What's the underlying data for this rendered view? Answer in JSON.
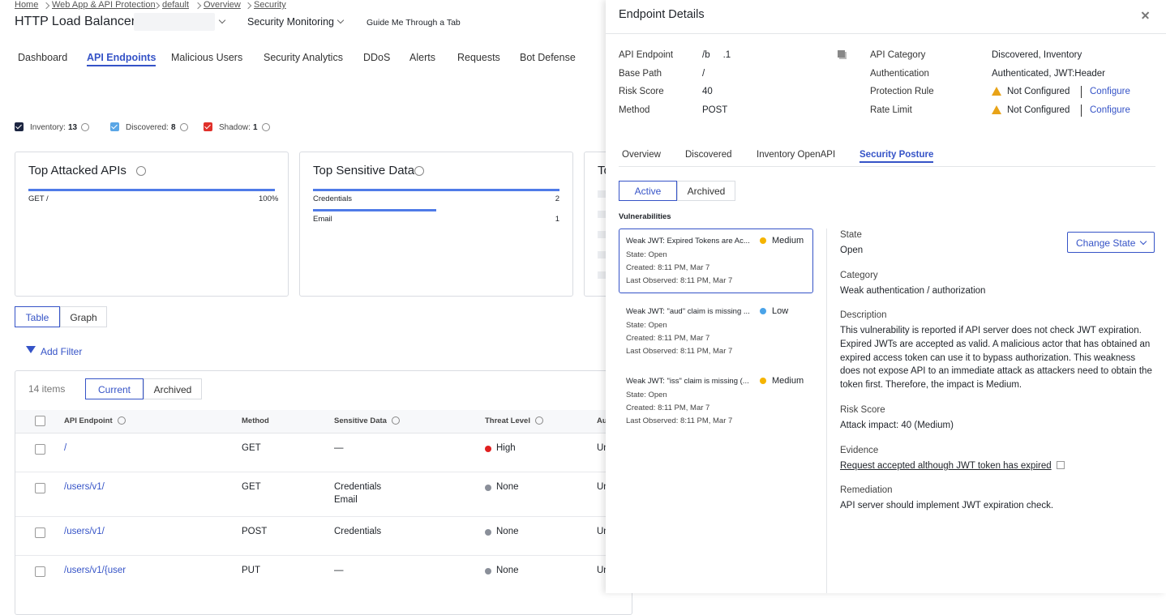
{
  "breadcrumb": [
    "Home",
    "Web App & API Protection",
    "default",
    "Overview",
    "Security"
  ],
  "header": {
    "title": "HTTP Load Balancer:",
    "dropdown": "Security Monitoring",
    "guide": "Guide Me Through a Tab"
  },
  "tabs": [
    "Dashboard",
    "API Endpoints",
    "Malicious Users",
    "Security Analytics",
    "DDoS",
    "Alerts",
    "Requests",
    "Bot Defense"
  ],
  "active_tab": 1,
  "filters": [
    {
      "label": "Inventory:",
      "count": "13",
      "color": "#1c2541"
    },
    {
      "label": "Discovered:",
      "count": "8",
      "color": "#5aa6e6"
    },
    {
      "label": "Shadow:",
      "count": "1",
      "color": "#e0302a"
    }
  ],
  "cards": [
    {
      "title": "Top Attacked APIs",
      "rows": [
        {
          "label": "GET /",
          "value": "100%"
        }
      ]
    },
    {
      "title": "Top Sensitive Data",
      "rows": [
        {
          "label": "Credentials",
          "value": "2"
        },
        {
          "label": "Email",
          "value": "1"
        }
      ]
    },
    {
      "title": "To",
      "rows": []
    }
  ],
  "view_toggle": [
    "Table",
    "Graph"
  ],
  "add_filter": "Add Filter",
  "table": {
    "count": "14 items",
    "toggle": [
      "Current",
      "Archived"
    ],
    "columns": [
      "API Endpoint",
      "Method",
      "Sensitive Data",
      "Threat Level",
      "Au"
    ],
    "rows": [
      {
        "endpoint": "/",
        "method": "GET",
        "sensitive": [
          "—"
        ],
        "threat": "High",
        "threat_color": "#e02020",
        "auth": "Un"
      },
      {
        "endpoint": "/users/v1/",
        "method": "GET",
        "sensitive": [
          "Credentials",
          "Email"
        ],
        "threat": "None",
        "threat_color": "#8a8f99",
        "auth": "Un"
      },
      {
        "endpoint": "/users/v1/",
        "method": "POST",
        "sensitive": [
          "Credentials"
        ],
        "threat": "None",
        "threat_color": "#8a8f99",
        "auth": "Un"
      },
      {
        "endpoint": "/users/v1/{user",
        "method": "PUT",
        "sensitive": [
          "—"
        ],
        "threat": "None",
        "threat_color": "#8a8f99",
        "auth": "Un"
      }
    ]
  },
  "drawer": {
    "title": "Endpoint Details",
    "details_left": [
      {
        "label": "API Endpoint",
        "value": "/b     .1"
      },
      {
        "label": "Base Path",
        "value": "/"
      },
      {
        "label": "Risk Score",
        "value": "40"
      },
      {
        "label": "Method",
        "value": "POST"
      }
    ],
    "details_right": [
      {
        "label": "API Category",
        "value": "Discovered, Inventory"
      },
      {
        "label": "Authentication",
        "value": "Authenticated, JWT:Header"
      },
      {
        "label": "Protection Rule",
        "value": "Not Configured",
        "action": "Configure"
      },
      {
        "label": "Rate Limit",
        "value": "Not Configured",
        "action": "Configure"
      }
    ],
    "tabs": [
      "Overview",
      "Discovered",
      "Inventory OpenAPI",
      "Security Posture"
    ],
    "active_tab": 3,
    "state_toggle": [
      "Active",
      "Archived"
    ],
    "vulnerabilities_heading": "Vulnerabilities",
    "vulnerabilities": [
      {
        "title": "Weak JWT: Expired Tokens are Ac...",
        "severity": "Medium",
        "severity_color": "#f5b400",
        "state": "State: Open",
        "created": "Created: 8:11 PM, Mar 7",
        "last_observed": "Last Observed: 8:11 PM, Mar 7"
      },
      {
        "title": "Weak JWT: \"aud\" claim is missing ...",
        "severity": "Low",
        "severity_color": "#4aa3e8",
        "state": "State: Open",
        "created": "Created: 8:11 PM, Mar 7",
        "last_observed": "Last Observed: 8:11 PM, Mar 7"
      },
      {
        "title": "Weak JWT: \"iss\" claim is missing (...",
        "severity": "Medium",
        "severity_color": "#f5b400",
        "state": "State: Open",
        "created": "Created: 8:11 PM, Mar 7",
        "last_observed": "Last Observed: 8:11 PM, Mar 7"
      }
    ],
    "detail": {
      "change_state": "Change State",
      "sections": [
        {
          "label": "State",
          "value": "Open"
        },
        {
          "label": "Category",
          "value": "Weak authentication / authorization"
        },
        {
          "label": "Description",
          "value": "This vulnerability is reported if API server does not check JWT expiration. Expired JWTs are accepted as valid. A malicious actor that has obtained an expired access token can use it to bypass authorization. This weakness does not expose API to an immediate attack as attackers need to obtain the token first. Therefore, the impact is Medium."
        },
        {
          "label": "Risk Score",
          "value": "Attack impact: 40 (Medium)"
        },
        {
          "label": "Evidence",
          "value": "Request accepted although JWT token has expired"
        },
        {
          "label": "Remediation",
          "value": "API server should implement JWT expiration check."
        }
      ]
    }
  }
}
